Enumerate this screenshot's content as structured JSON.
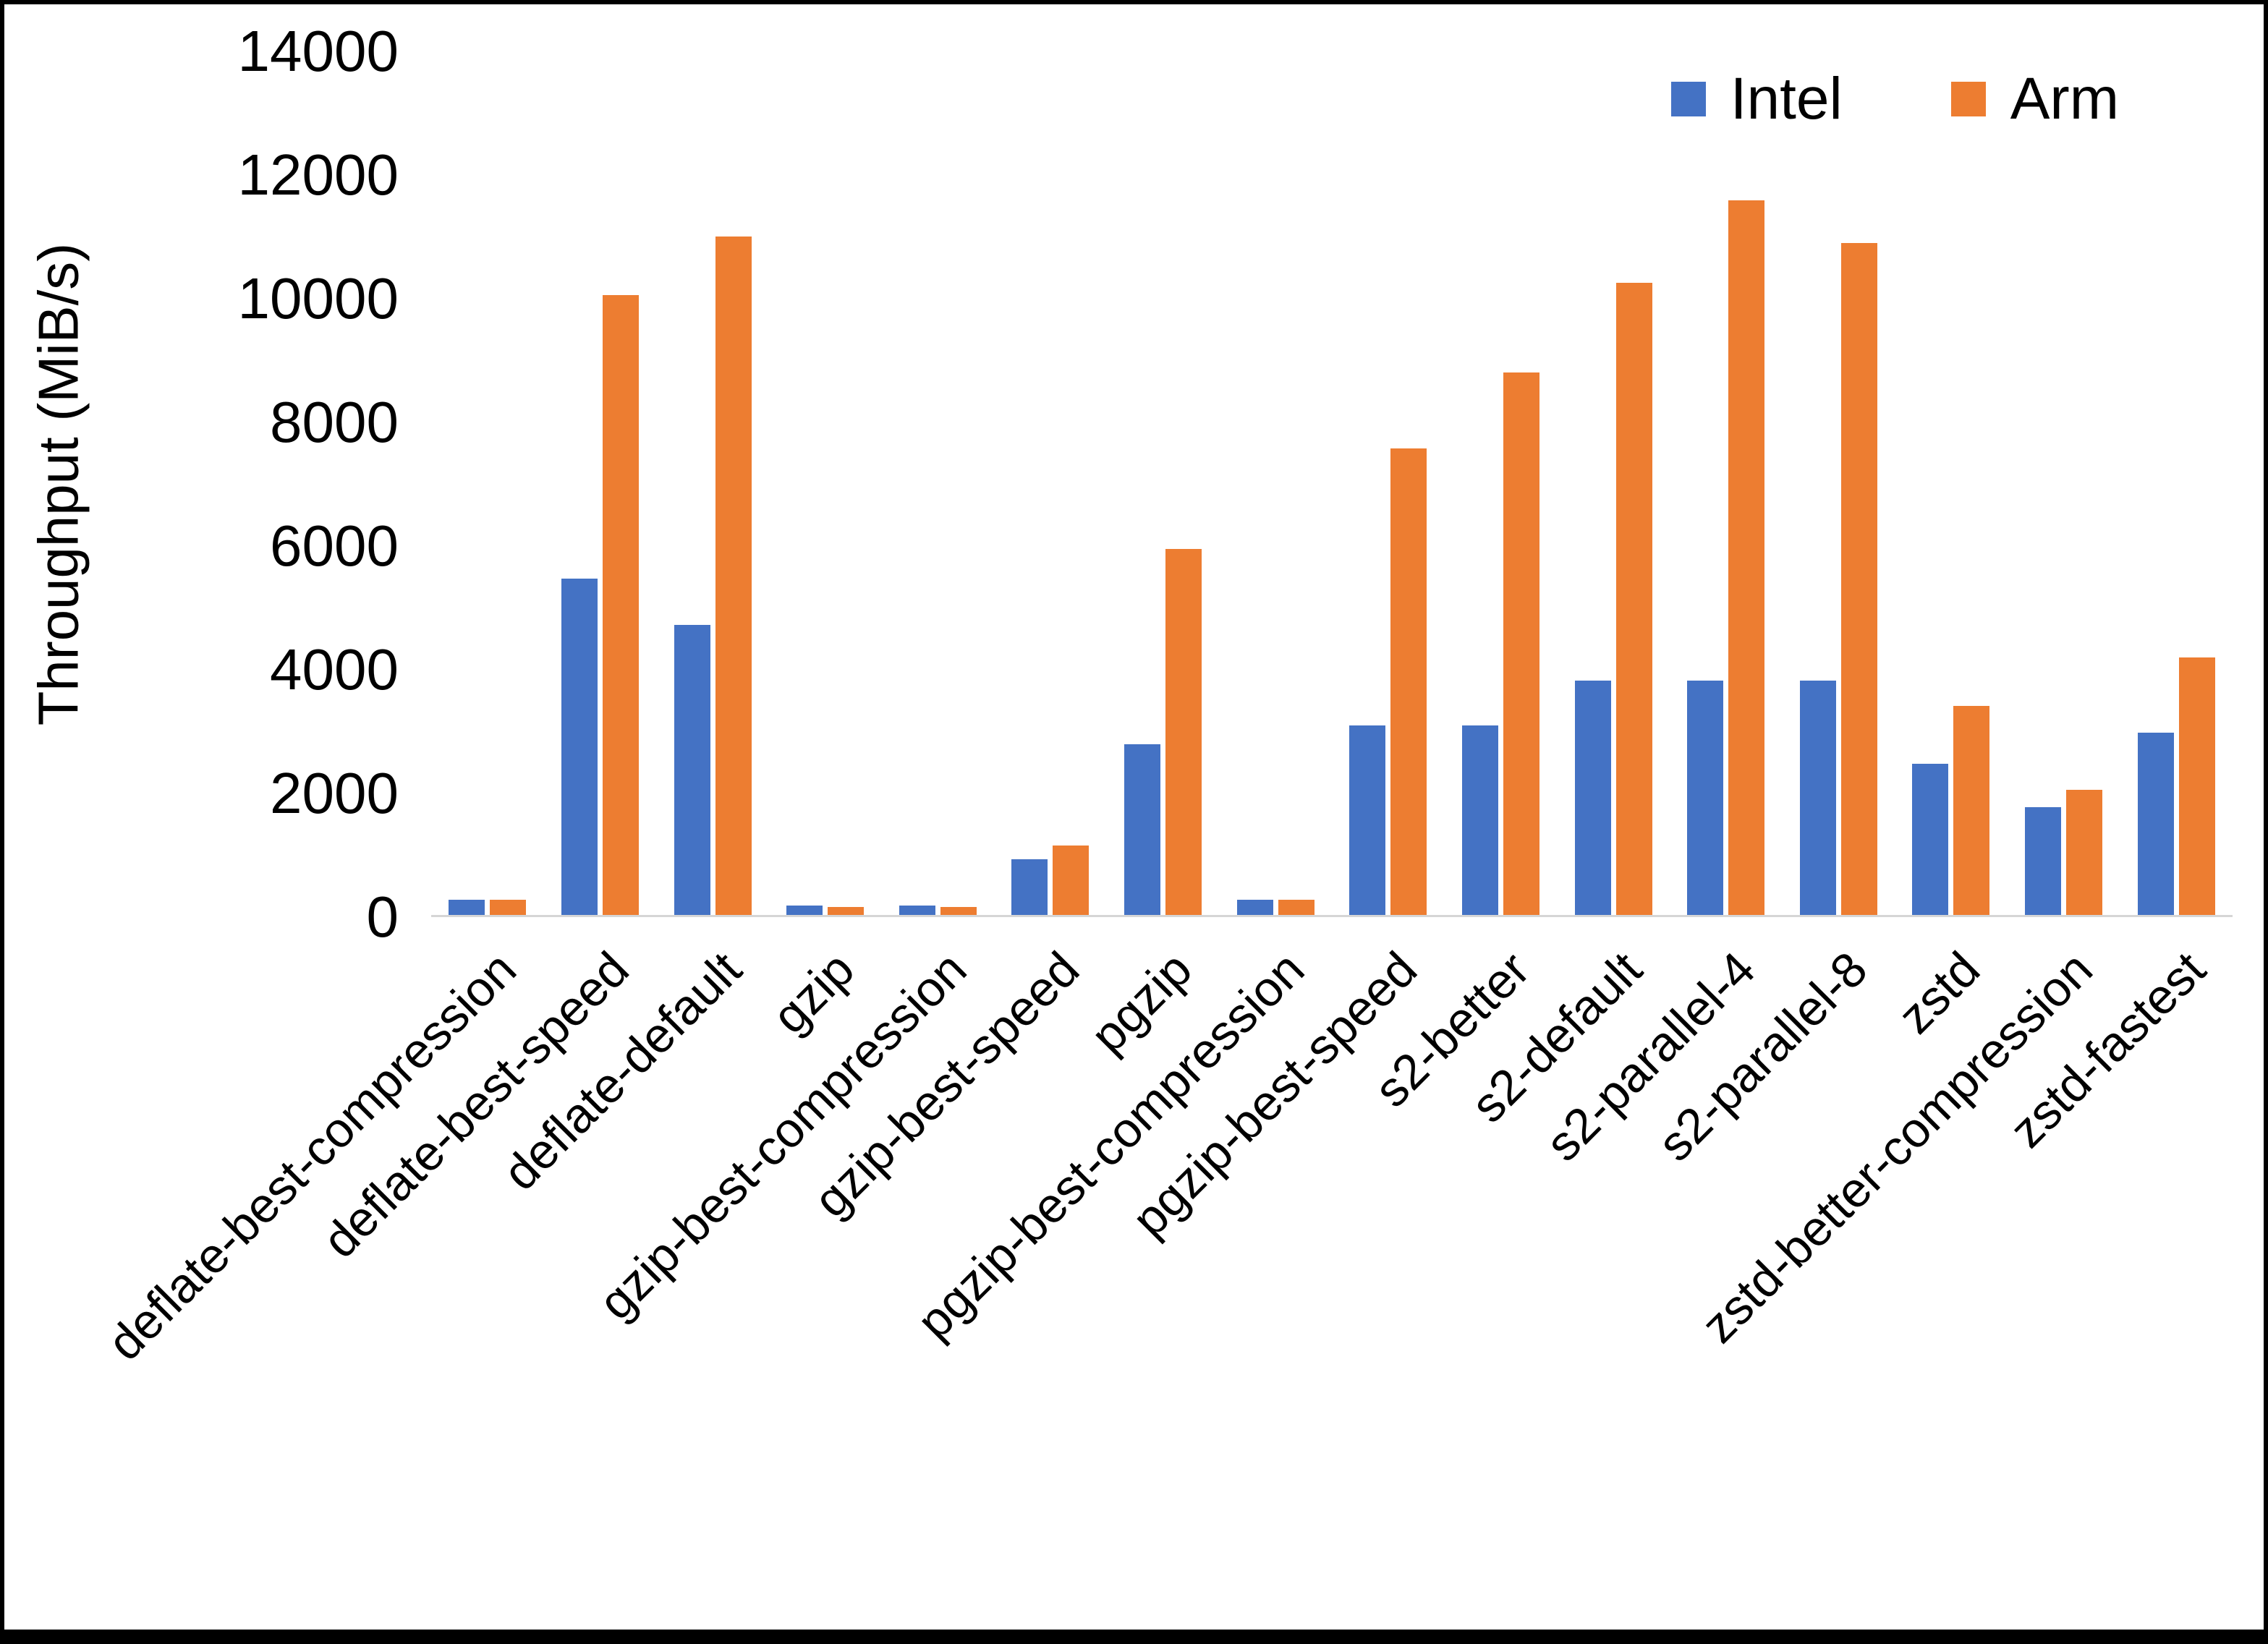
{
  "chart_data": {
    "type": "bar",
    "title": "",
    "xlabel": "",
    "ylabel": "Throughput (MiB/s)",
    "ylim": [
      0,
      14000
    ],
    "yticks": [
      0,
      2000,
      4000,
      6000,
      8000,
      10000,
      12000,
      14000
    ],
    "grid": false,
    "legend_position": "top-right",
    "categories": [
      "deflate-best-compression",
      "deflate-best-speed",
      "deflate-default",
      "gzip",
      "gzip-best-compression",
      "gzip-best-speed",
      "pgzip",
      "pgzip-best-compression",
      "pgzip-best-speed",
      "s2-better",
      "s2-default",
      "s2-parallel-4",
      "s2-parallel-8",
      "zstd",
      "zstd-better-compression",
      "zstd-fastest"
    ],
    "series": [
      {
        "name": "Intel",
        "color": "#4472C4",
        "values": [
          250,
          5450,
          4700,
          150,
          150,
          900,
          2770,
          250,
          3070,
          3070,
          3800,
          3800,
          3800,
          2450,
          1750,
          2950
        ]
      },
      {
        "name": "Arm",
        "color": "#ED7D31",
        "values": [
          250,
          10050,
          11000,
          130,
          130,
          1120,
          5930,
          250,
          7560,
          8790,
          10250,
          11580,
          10890,
          3390,
          2030,
          4180
        ]
      }
    ]
  }
}
